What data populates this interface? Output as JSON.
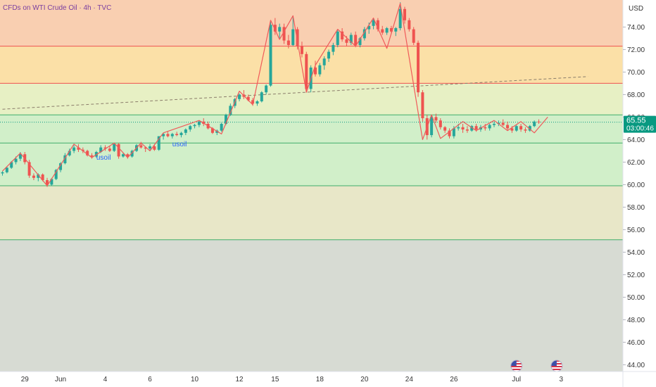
{
  "header": {
    "title": "CFDs on WTI Crude Oil · 4h · TVC"
  },
  "colors": {
    "up": "#26a69a",
    "down": "#ef5350",
    "band_top": "#f9cfb1",
    "band_orange": "#fbe0a7",
    "band_light_green": "#e7f0c4",
    "band_green": "#d1efc9",
    "band_olive": "#e8e7c8",
    "band_gray": "#d7dbd3",
    "wave": "#f05a5a",
    "level_line_green": "#3fae6b",
    "level_line_red": "#ef5350",
    "price_tag": "#089981"
  },
  "chart_data": {
    "type": "candlestick",
    "title": "CFDs on WTI Crude Oil · 4h · TVC",
    "currency": "USD",
    "ylim": [
      43.4,
      76.4
    ],
    "y_ticks": [
      "74.00",
      "72.00",
      "70.00",
      "68.00",
      "66.00",
      "64.00",
      "62.00",
      "60.00",
      "58.00",
      "56.00",
      "54.00",
      "52.00",
      "50.00",
      "48.00",
      "46.00",
      "44.00"
    ],
    "x_ticks": [
      {
        "label": "29",
        "index": 5
      },
      {
        "label": "Jun",
        "index": 13
      },
      {
        "label": "4",
        "index": 23
      },
      {
        "label": "6",
        "index": 33
      },
      {
        "label": "10",
        "index": 43
      },
      {
        "label": "12",
        "index": 53
      },
      {
        "label": "15",
        "index": 61
      },
      {
        "label": "18",
        "index": 71
      },
      {
        "label": "20",
        "index": 81
      },
      {
        "label": "24",
        "index": 91
      },
      {
        "label": "26",
        "index": 101
      },
      {
        "label": "Jul",
        "index": 115
      },
      {
        "label": "3",
        "index": 125
      }
    ],
    "last_price": "65.55",
    "countdown": "03:00:46",
    "bands": [
      {
        "from": 76.4,
        "to": 72.3,
        "color_key": "band_top"
      },
      {
        "from": 72.3,
        "to": 69.0,
        "color_key": "band_orange"
      },
      {
        "from": 69.0,
        "to": 66.2,
        "color_key": "band_light_green"
      },
      {
        "from": 66.2,
        "to": 63.7,
        "color_key": "band_green"
      },
      {
        "from": 63.7,
        "to": 59.9,
        "color_key": "band_green"
      },
      {
        "from": 59.9,
        "to": 55.1,
        "color_key": "band_olive"
      },
      {
        "from": 55.1,
        "to": 43.4,
        "color_key": "band_gray"
      }
    ],
    "levels": [
      {
        "price": 72.3,
        "color_key": "level_line_red"
      },
      {
        "price": 69.0,
        "color_key": "level_line_red"
      },
      {
        "price": 66.2,
        "color_key": "level_line_green"
      },
      {
        "price": 63.7,
        "color_key": "level_line_green"
      },
      {
        "price": 59.9,
        "color_key": "level_line_green"
      },
      {
        "price": 55.1,
        "color_key": "level_line_green"
      }
    ],
    "trendline": {
      "from": {
        "index": 0,
        "price": 66.7
      },
      "to": {
        "index": 131,
        "price": 69.6
      }
    },
    "last_price_line": 65.55,
    "annotations": [
      {
        "text": "usoil",
        "index": 21,
        "price": 62.2
      },
      {
        "text": "usoil",
        "index": 38,
        "price": 63.4
      }
    ],
    "candles": [
      [
        61.0,
        61.2,
        60.8,
        61.1
      ],
      [
        61.1,
        61.6,
        61.0,
        61.5
      ],
      [
        61.5,
        62.1,
        61.4,
        62.0
      ],
      [
        62.0,
        62.5,
        61.8,
        62.3
      ],
      [
        62.3,
        62.9,
        62.1,
        62.7
      ],
      [
        62.7,
        62.9,
        61.8,
        62.0
      ],
      [
        62.0,
        62.2,
        60.6,
        60.8
      ],
      [
        60.8,
        61.0,
        60.4,
        60.6
      ],
      [
        60.6,
        61.0,
        60.3,
        60.9
      ],
      [
        60.9,
        61.0,
        60.3,
        60.4
      ],
      [
        60.4,
        60.6,
        59.8,
        60.0
      ],
      [
        60.0,
        60.6,
        59.9,
        60.5
      ],
      [
        60.5,
        61.4,
        60.4,
        61.3
      ],
      [
        61.3,
        62.0,
        61.1,
        61.9
      ],
      [
        61.9,
        62.8,
        61.8,
        62.6
      ],
      [
        62.6,
        63.2,
        62.5,
        63.0
      ],
      [
        63.0,
        63.5,
        62.8,
        63.3
      ],
      [
        63.3,
        63.6,
        62.9,
        63.1
      ],
      [
        63.1,
        63.3,
        62.8,
        63.0
      ],
      [
        63.0,
        63.1,
        62.5,
        62.6
      ],
      [
        62.6,
        62.8,
        62.3,
        62.5
      ],
      [
        62.5,
        63.0,
        62.4,
        62.9
      ],
      [
        62.9,
        63.5,
        62.8,
        63.3
      ],
      [
        63.3,
        63.5,
        63.0,
        63.2
      ],
      [
        63.2,
        63.4,
        62.9,
        63.0
      ],
      [
        63.0,
        63.7,
        62.9,
        63.6
      ],
      [
        63.6,
        63.7,
        62.3,
        62.5
      ],
      [
        62.5,
        62.8,
        62.4,
        62.7
      ],
      [
        62.7,
        62.8,
        62.3,
        62.5
      ],
      [
        62.5,
        63.1,
        62.4,
        63.0
      ],
      [
        63.0,
        63.6,
        62.9,
        63.5
      ],
      [
        63.5,
        63.8,
        63.2,
        63.3
      ],
      [
        63.3,
        63.4,
        62.9,
        63.2
      ],
      [
        63.2,
        63.6,
        63.0,
        63.4
      ],
      [
        63.4,
        63.6,
        63.0,
        63.1
      ],
      [
        63.1,
        64.3,
        63.0,
        64.3
      ],
      [
        64.3,
        64.6,
        64.0,
        64.5
      ],
      [
        64.5,
        64.7,
        64.2,
        64.3
      ],
      [
        64.3,
        64.6,
        64.1,
        64.5
      ],
      [
        64.5,
        64.7,
        64.3,
        64.4
      ],
      [
        64.4,
        64.7,
        64.2,
        64.6
      ],
      [
        64.6,
        65.0,
        64.4,
        64.9
      ],
      [
        64.9,
        65.3,
        64.7,
        65.2
      ],
      [
        65.2,
        65.4,
        65.0,
        65.3
      ],
      [
        65.3,
        65.7,
        65.1,
        65.6
      ],
      [
        65.6,
        65.9,
        65.2,
        65.4
      ],
      [
        65.4,
        65.6,
        64.9,
        65.0
      ],
      [
        65.0,
        65.1,
        64.5,
        64.6
      ],
      [
        64.6,
        64.9,
        64.4,
        64.8
      ],
      [
        64.8,
        65.5,
        64.7,
        65.4
      ],
      [
        65.4,
        66.3,
        65.3,
        66.2
      ],
      [
        66.2,
        67.2,
        66.1,
        67.0
      ],
      [
        67.0,
        67.7,
        66.8,
        67.6
      ],
      [
        67.6,
        68.1,
        67.4,
        68.0
      ],
      [
        68.0,
        68.4,
        67.6,
        67.8
      ],
      [
        67.8,
        68.0,
        67.4,
        67.5
      ],
      [
        67.5,
        67.7,
        67.0,
        67.2
      ],
      [
        67.2,
        67.5,
        67.0,
        67.4
      ],
      [
        67.4,
        68.3,
        67.3,
        68.2
      ],
      [
        68.2,
        68.9,
        68.0,
        68.8
      ],
      [
        68.8,
        74.6,
        68.7,
        74.2
      ],
      [
        74.2,
        74.8,
        73.3,
        73.6
      ],
      [
        73.6,
        74.3,
        73.0,
        74.0
      ],
      [
        74.0,
        74.3,
        72.5,
        72.8
      ],
      [
        72.8,
        73.3,
        72.1,
        72.4
      ],
      [
        72.4,
        75.0,
        72.3,
        73.8
      ],
      [
        73.8,
        74.0,
        72.0,
        72.3
      ],
      [
        72.3,
        72.7,
        71.3,
        71.6
      ],
      [
        71.6,
        71.8,
        68.2,
        68.5
      ],
      [
        68.5,
        70.6,
        68.2,
        70.4
      ],
      [
        70.4,
        71.0,
        69.6,
        69.8
      ],
      [
        69.8,
        70.8,
        69.6,
        70.6
      ],
      [
        70.6,
        71.4,
        70.2,
        71.2
      ],
      [
        71.2,
        72.0,
        70.9,
        71.8
      ],
      [
        71.8,
        72.6,
        71.5,
        72.4
      ],
      [
        72.4,
        73.8,
        72.2,
        73.6
      ],
      [
        73.6,
        73.9,
        72.7,
        72.9
      ],
      [
        72.9,
        73.2,
        72.3,
        72.6
      ],
      [
        72.6,
        73.5,
        72.4,
        73.3
      ],
      [
        73.3,
        73.6,
        72.2,
        72.4
      ],
      [
        72.4,
        73.1,
        72.2,
        73.0
      ],
      [
        73.0,
        74.0,
        72.8,
        73.8
      ],
      [
        73.8,
        74.4,
        73.4,
        74.1
      ],
      [
        74.1,
        74.8,
        73.8,
        74.6
      ],
      [
        74.6,
        74.8,
        73.6,
        73.8
      ],
      [
        73.8,
        74.1,
        73.3,
        73.5
      ],
      [
        73.5,
        74.0,
        73.3,
        73.9
      ],
      [
        73.9,
        74.1,
        73.4,
        73.6
      ],
      [
        73.6,
        74.0,
        73.2,
        73.9
      ],
      [
        73.9,
        76.2,
        73.7,
        75.6
      ],
      [
        75.6,
        75.8,
        74.3,
        74.6
      ],
      [
        74.6,
        74.8,
        73.6,
        73.8
      ],
      [
        73.8,
        74.0,
        72.4,
        72.6
      ],
      [
        72.6,
        72.8,
        67.8,
        68.2
      ],
      [
        68.2,
        68.4,
        65.6,
        65.9
      ],
      [
        65.9,
        66.2,
        64.0,
        64.4
      ],
      [
        64.4,
        66.1,
        64.2,
        66.0
      ],
      [
        66.0,
        66.3,
        65.5,
        65.7
      ],
      [
        65.7,
        65.9,
        64.9,
        65.1
      ],
      [
        65.1,
        65.2,
        64.6,
        64.8
      ],
      [
        64.8,
        65.0,
        64.1,
        64.3
      ],
      [
        64.3,
        65.2,
        64.1,
        65.0
      ],
      [
        65.0,
        65.4,
        64.8,
        65.1
      ],
      [
        65.1,
        65.4,
        64.6,
        64.9
      ],
      [
        64.9,
        65.2,
        64.6,
        64.8
      ],
      [
        64.8,
        65.3,
        64.7,
        65.2
      ],
      [
        65.2,
        65.4,
        64.7,
        64.9
      ],
      [
        64.9,
        65.3,
        64.7,
        65.1
      ],
      [
        65.1,
        65.4,
        64.8,
        65.0
      ],
      [
        65.0,
        65.4,
        64.8,
        65.3
      ],
      [
        65.3,
        65.6,
        65.1,
        65.4
      ],
      [
        65.4,
        65.7,
        65.2,
        65.5
      ],
      [
        65.5,
        65.8,
        65.2,
        65.3
      ],
      [
        65.3,
        65.6,
        64.8,
        65.0
      ],
      [
        65.0,
        65.2,
        64.6,
        64.8
      ],
      [
        64.8,
        65.3,
        64.7,
        65.2
      ],
      [
        65.2,
        65.4,
        64.7,
        64.9
      ],
      [
        64.9,
        65.1,
        64.6,
        64.8
      ],
      [
        64.8,
        65.3,
        64.7,
        65.2
      ],
      [
        65.2,
        65.7,
        65.1,
        65.6
      ],
      [
        65.6,
        65.8,
        65.4,
        65.55
      ]
    ],
    "wave_paths": [
      [
        [
          0,
          61.2
        ],
        [
          4,
          62.8
        ],
        [
          10,
          59.9
        ],
        [
          16,
          63.6
        ],
        [
          20,
          62.4
        ],
        [
          25,
          63.7
        ],
        [
          28,
          62.4
        ],
        [
          31,
          63.7
        ],
        [
          33,
          63.0
        ],
        [
          36,
          64.6
        ],
        [
          44,
          65.7
        ],
        [
          49,
          64.5
        ],
        [
          53,
          68.3
        ],
        [
          56,
          67.1
        ],
        [
          60,
          74.6
        ],
        [
          62,
          72.9
        ],
        [
          65,
          75.0
        ],
        [
          68,
          68.2
        ],
        [
          70,
          70.6
        ],
        [
          75,
          73.8
        ],
        [
          79,
          72.3
        ],
        [
          83,
          74.8
        ],
        [
          86,
          72.1
        ],
        [
          89,
          76.1
        ],
        [
          94,
          64.0
        ],
        [
          96,
          66.2
        ],
        [
          98,
          64.1
        ],
        [
          103,
          65.6
        ],
        [
          106,
          64.8
        ],
        [
          110,
          65.7
        ],
        [
          113,
          64.8
        ],
        [
          116,
          65.6
        ],
        [
          119,
          64.6
        ],
        [
          122,
          66.0
        ]
      ]
    ],
    "events": [
      {
        "icon": "us-flag-icon",
        "index": 115
      },
      {
        "icon": "us-flag-icon",
        "index": 124
      }
    ]
  }
}
